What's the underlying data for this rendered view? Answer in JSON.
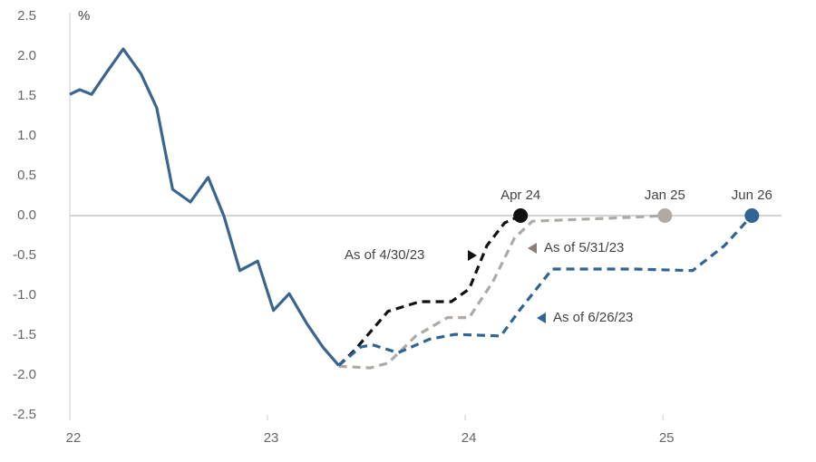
{
  "chart_data": {
    "type": "line",
    "y_unit": "%",
    "xlim": [
      22,
      25.6
    ],
    "ylim": [
      -2.5,
      2.5
    ],
    "xticks": [
      22,
      23,
      24,
      25
    ],
    "yticks": [
      2.5,
      {
        "value": 2,
        "label": "2.0"
      },
      1.5,
      {
        "value": 1,
        "label": "1.0"
      },
      0.5,
      {
        "value": 0,
        "label": "0.0"
      },
      -0.5,
      {
        "value": -1,
        "label": "-1.0"
      },
      -1.5,
      {
        "value": -2,
        "label": "-2.0"
      },
      -2.5
    ],
    "series": [
      {
        "color": "#3a6591",
        "dashed": false,
        "x": [
          22.0,
          22.05,
          22.11,
          22.19,
          22.27,
          22.36,
          22.44,
          22.52,
          22.61,
          22.7,
          22.78,
          22.86,
          22.95,
          23.03,
          23.11,
          23.2,
          23.28,
          23.36
        ],
        "values": [
          1.52,
          1.58,
          1.52,
          1.81,
          2.09,
          1.78,
          1.35,
          0.33,
          0.17,
          0.48,
          -0.01,
          -0.69,
          -0.57,
          -1.19,
          -0.98,
          -1.36,
          -1.65,
          -1.88
        ]
      },
      {
        "name": "As of 4/30/23",
        "color": "#111111",
        "dashed": true,
        "end_label": "Apr 24",
        "x": [
          23.36,
          23.44,
          23.61,
          23.77,
          23.93,
          24.02,
          24.11,
          24.2,
          24.28
        ],
        "values": [
          -1.88,
          -1.69,
          -1.2,
          -1.08,
          -1.08,
          -0.92,
          -0.375,
          -0.09,
          0
        ]
      },
      {
        "name": "As of 5/31/23",
        "color": "#b0aaa6",
        "dashed": true,
        "end_label": "Jan 25",
        "x": [
          23.36,
          23.52,
          23.61,
          23.75,
          23.91,
          24.02,
          24.14,
          24.25,
          24.34,
          24.85,
          25.01
        ],
        "values": [
          -1.89,
          -1.91,
          -1.85,
          -1.51,
          -1.28,
          -1.28,
          -0.83,
          -0.28,
          -0.07,
          -0.02,
          0
        ]
      },
      {
        "name": "As of 6/26/23",
        "color": "#2f6494",
        "dashed": true,
        "end_label": "Jun 26",
        "x": [
          23.36,
          23.47,
          23.53,
          23.66,
          23.82,
          23.95,
          24.18,
          24.28,
          24.44,
          24.85,
          25.15,
          25.31,
          25.45
        ],
        "values": [
          -1.88,
          -1.65,
          -1.62,
          -1.72,
          -1.55,
          -1.49,
          -1.51,
          -1.17,
          -0.67,
          -0.67,
          -0.69,
          -0.38,
          0
        ]
      }
    ]
  }
}
